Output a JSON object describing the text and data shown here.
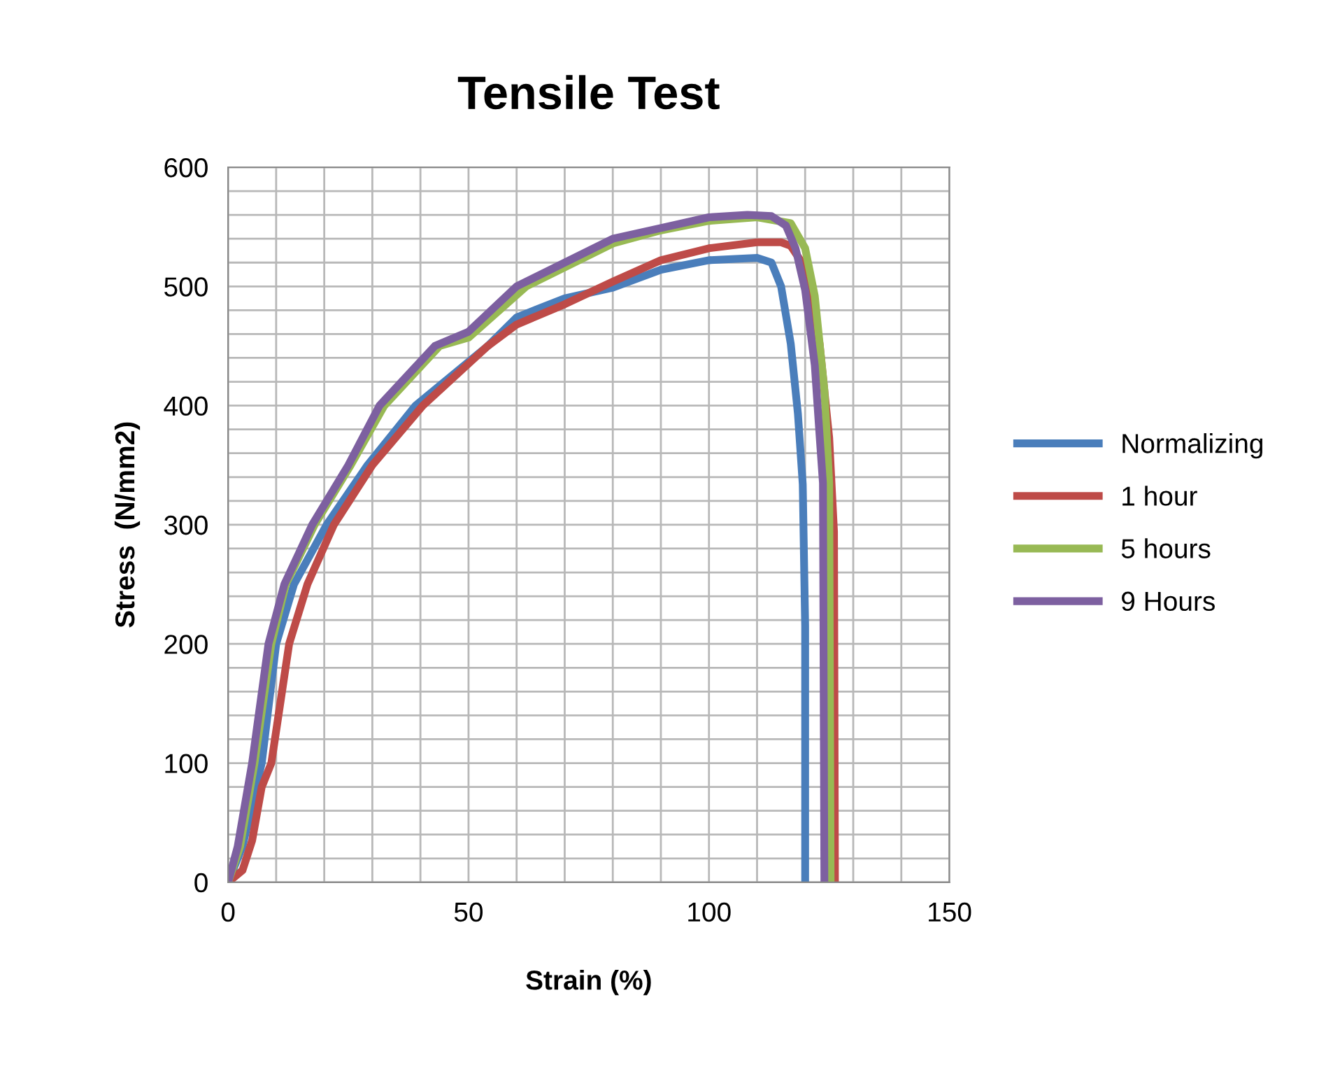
{
  "chart_data": {
    "type": "line",
    "title": "Tensile Test",
    "xlabel": "Strain (%)",
    "ylabel": "Stress  (N/mm2)",
    "xlim": [
      0,
      150
    ],
    "ylim": [
      0,
      600
    ],
    "xticks": [
      0,
      {
        "value": 10,
        "label": null
      },
      {
        "value": 20,
        "label": null
      },
      {
        "value": 30,
        "label": null
      },
      {
        "value": 40,
        "label": null
      },
      50,
      {
        "value": 60,
        "label": null
      },
      {
        "value": 70,
        "label": null
      },
      {
        "value": 80,
        "label": null
      },
      {
        "value": 90,
        "label": null
      },
      100,
      {
        "value": 110,
        "label": null
      },
      {
        "value": 120,
        "label": null
      },
      {
        "value": 130,
        "label": null
      },
      {
        "value": 140,
        "label": null
      },
      150
    ],
    "yticks": [
      0,
      {
        "value": 20,
        "label": null
      },
      {
        "value": 40,
        "label": null
      },
      {
        "value": 60,
        "label": null
      },
      {
        "value": 80,
        "label": null
      },
      100,
      {
        "value": 120,
        "label": null
      },
      {
        "value": 140,
        "label": null
      },
      {
        "value": 160,
        "label": null
      },
      {
        "value": 180,
        "label": null
      },
      200,
      {
        "value": 220,
        "label": null
      },
      {
        "value": 240,
        "label": null
      },
      {
        "value": 260,
        "label": null
      },
      {
        "value": 280,
        "label": null
      },
      300,
      {
        "value": 320,
        "label": null
      },
      {
        "value": 340,
        "label": null
      },
      {
        "value": 360,
        "label": null
      },
      {
        "value": 380,
        "label": null
      },
      400,
      {
        "value": 420,
        "label": null
      },
      {
        "value": 440,
        "label": null
      },
      {
        "value": 460,
        "label": null
      },
      {
        "value": 480,
        "label": null
      },
      500,
      {
        "value": 520,
        "label": null
      },
      {
        "value": 540,
        "label": null
      },
      {
        "value": 560,
        "label": null
      },
      {
        "value": 580,
        "label": null
      },
      600
    ],
    "grid": true,
    "legend": "right",
    "marker": "none",
    "line_style": "solid",
    "series": [
      {
        "name": "Normalizing",
        "color": "#4a7ebb",
        "x": [
          0,
          3,
          7,
          10,
          13.7,
          20.5,
          29,
          39,
          54,
          60,
          70,
          80,
          90,
          100,
          110,
          113,
          115,
          117,
          118.5,
          119.5,
          120,
          120
        ],
        "values": [
          0,
          30,
          100,
          200,
          250,
          300,
          350,
          400,
          450,
          474,
          490,
          499,
          514,
          522,
          524,
          520,
          500,
          452,
          393,
          334,
          215,
          0
        ]
      },
      {
        "name": "1 hour",
        "color": "#be4b48",
        "x": [
          0,
          3,
          5,
          7,
          9,
          12.7,
          16.5,
          22,
          30,
          40.5,
          54,
          60,
          70,
          80,
          90,
          100,
          110,
          115,
          117,
          120,
          123,
          125,
          126,
          126.2
        ],
        "values": [
          0,
          10,
          35,
          80,
          100,
          200,
          250,
          300,
          350,
          400,
          450,
          468,
          485,
          504,
          522,
          532,
          537,
          537,
          534,
          516,
          452,
          373,
          294,
          0
        ]
      },
      {
        "name": "5 hours",
        "color": "#98b954",
        "x": [
          0,
          2.5,
          5.5,
          9,
          12,
          18,
          25.5,
          32.5,
          44,
          50,
          62,
          80,
          90,
          100,
          110,
          117,
          120,
          122,
          124,
          125,
          125.3
        ],
        "values": [
          0,
          30,
          100,
          200,
          250,
          300,
          350,
          400,
          450,
          457,
          500,
          536,
          547,
          555,
          558,
          553,
          532,
          492,
          413,
          335,
          0
        ]
      },
      {
        "name": "9 Hours",
        "color": "#7d60a0",
        "x": [
          0,
          2,
          5,
          8.4,
          11.7,
          17.5,
          25,
          31.5,
          43,
          50,
          60,
          80,
          90,
          100,
          108,
          113,
          116,
          118,
          120,
          122,
          123,
          123.7,
          124
        ],
        "values": [
          0,
          30,
          100,
          200,
          250,
          300,
          350,
          400,
          450,
          462,
          500,
          540,
          549,
          558,
          560,
          559,
          551,
          532,
          497,
          434,
          375,
          335,
          0
        ]
      }
    ]
  }
}
